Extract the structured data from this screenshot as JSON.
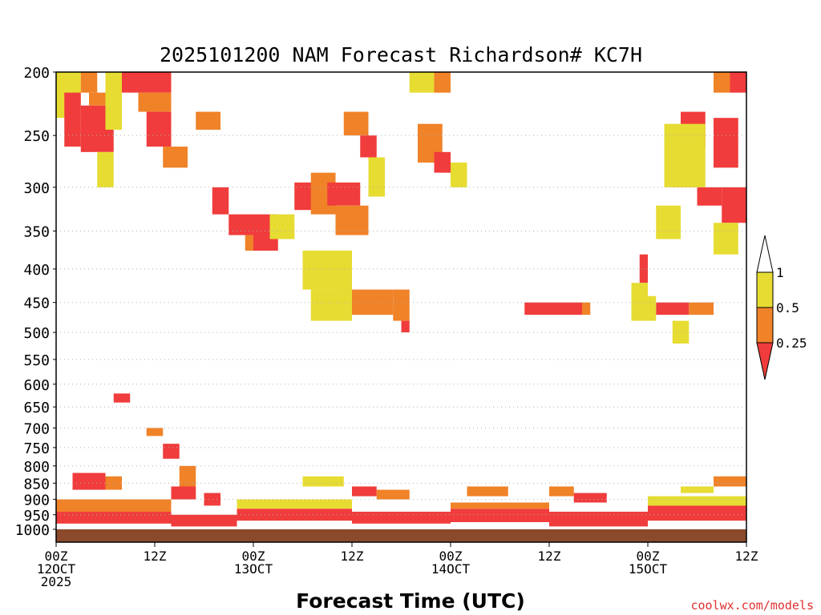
{
  "chart_data": {
    "type": "heatmap",
    "title": "2025101200 NAM Forecast Richardson# KC7H",
    "xlabel": "Forecast Time (UTC)",
    "ylabel": "",
    "credit": "coolwx.com/models",
    "x_range_hours": [
      0,
      84
    ],
    "y_range_hpa": [
      200,
      1000
    ],
    "y_ticks": [
      "200",
      "250",
      "300",
      "350",
      "400",
      "450",
      "500",
      "550",
      "600",
      "650",
      "700",
      "750",
      "800",
      "850",
      "900",
      "950",
      "1000"
    ],
    "x_ticks": [
      {
        "hour": 0,
        "line1": "00Z",
        "line2": "12OCT",
        "line3": "2025"
      },
      {
        "hour": 12,
        "line1": "12Z",
        "line2": "",
        "line3": ""
      },
      {
        "hour": 24,
        "line1": "00Z",
        "line2": "13OCT",
        "line3": ""
      },
      {
        "hour": 36,
        "line1": "12Z",
        "line2": "",
        "line3": ""
      },
      {
        "hour": 48,
        "line1": "00Z",
        "line2": "14OCT",
        "line3": ""
      },
      {
        "hour": 60,
        "line1": "12Z",
        "line2": "",
        "line3": ""
      },
      {
        "hour": 72,
        "line1": "00Z",
        "line2": "15OCT",
        "line3": ""
      },
      {
        "hour": 84,
        "line1": "12Z",
        "line2": "",
        "line3": ""
      }
    ],
    "legend": {
      "labels": [
        "1",
        "0.5",
        "0.25"
      ],
      "colors": {
        "above_1": "#ffffff",
        "0.5-1": "#e6dc32",
        "0.25-0.5": "#f08228",
        "below_0.25": "#f03c3c"
      }
    },
    "ground_color": "#8b4a2b",
    "cells": [
      {
        "h": [
          0,
          3
        ],
        "p": [
          200,
          235
        ],
        "c": "y"
      },
      {
        "h": [
          1,
          3
        ],
        "p": [
          215,
          260
        ],
        "c": "r"
      },
      {
        "h": [
          3,
          5
        ],
        "p": [
          200,
          215
        ],
        "c": "o"
      },
      {
        "h": [
          3,
          7
        ],
        "p": [
          225,
          265
        ],
        "c": "r"
      },
      {
        "h": [
          4,
          7
        ],
        "p": [
          215,
          225
        ],
        "c": "o"
      },
      {
        "h": [
          5,
          7
        ],
        "p": [
          265,
          300
        ],
        "c": "y"
      },
      {
        "h": [
          6,
          8
        ],
        "p": [
          200,
          245
        ],
        "c": "y"
      },
      {
        "h": [
          8,
          14
        ],
        "p": [
          200,
          215
        ],
        "c": "r"
      },
      {
        "h": [
          10,
          14
        ],
        "p": [
          215,
          230
        ],
        "c": "o"
      },
      {
        "h": [
          11,
          14
        ],
        "p": [
          230,
          260
        ],
        "c": "r"
      },
      {
        "h": [
          13,
          16
        ],
        "p": [
          260,
          280
        ],
        "c": "o"
      },
      {
        "h": [
          17,
          20
        ],
        "p": [
          230,
          245
        ],
        "c": "o"
      },
      {
        "h": [
          19,
          21
        ],
        "p": [
          300,
          330
        ],
        "c": "r"
      },
      {
        "h": [
          21,
          24
        ],
        "p": [
          330,
          355
        ],
        "c": "r"
      },
      {
        "h": [
          23,
          26
        ],
        "p": [
          355,
          375
        ],
        "c": "o"
      },
      {
        "h": [
          24,
          27
        ],
        "p": [
          330,
          375
        ],
        "c": "r"
      },
      {
        "h": [
          26,
          29
        ],
        "p": [
          330,
          360
        ],
        "c": "y"
      },
      {
        "h": [
          29,
          33
        ],
        "p": [
          295,
          325
        ],
        "c": "r"
      },
      {
        "h": [
          31,
          34
        ],
        "p": [
          285,
          330
        ],
        "c": "o"
      },
      {
        "h": [
          33,
          37
        ],
        "p": [
          295,
          320
        ],
        "c": "r"
      },
      {
        "h": [
          34,
          38
        ],
        "p": [
          320,
          355
        ],
        "c": "o"
      },
      {
        "h": [
          35,
          38
        ],
        "p": [
          230,
          250
        ],
        "c": "o"
      },
      {
        "h": [
          37,
          39
        ],
        "p": [
          250,
          270
        ],
        "c": "r"
      },
      {
        "h": [
          38,
          40
        ],
        "p": [
          270,
          310
        ],
        "c": "y"
      },
      {
        "h": [
          44,
          47
        ],
        "p": [
          240,
          275
        ],
        "c": "o"
      },
      {
        "h": [
          46,
          48
        ],
        "p": [
          265,
          285
        ],
        "c": "r"
      },
      {
        "h": [
          43,
          47
        ],
        "p": [
          200,
          215
        ],
        "c": "y"
      },
      {
        "h": [
          46,
          48
        ],
        "p": [
          200,
          215
        ],
        "c": "o"
      },
      {
        "h": [
          48,
          50
        ],
        "p": [
          275,
          300
        ],
        "c": "y"
      },
      {
        "h": [
          30,
          36
        ],
        "p": [
          375,
          430
        ],
        "c": "y"
      },
      {
        "h": [
          35,
          41
        ],
        "p": [
          430,
          470
        ],
        "c": "o"
      },
      {
        "h": [
          31,
          36
        ],
        "p": [
          430,
          480
        ],
        "c": "y"
      },
      {
        "h": [
          41,
          43
        ],
        "p": [
          430,
          480
        ],
        "c": "o"
      },
      {
        "h": [
          42,
          43
        ],
        "p": [
          480,
          500
        ],
        "c": "r"
      },
      {
        "h": [
          57,
          64
        ],
        "p": [
          450,
          470
        ],
        "c": "r"
      },
      {
        "h": [
          64,
          65
        ],
        "p": [
          450,
          470
        ],
        "c": "o"
      },
      {
        "h": [
          73,
          77
        ],
        "p": [
          450,
          470
        ],
        "c": "r"
      },
      {
        "h": [
          77,
          80
        ],
        "p": [
          450,
          470
        ],
        "c": "o"
      },
      {
        "h": [
          70,
          73
        ],
        "p": [
          440,
          480
        ],
        "c": "y"
      },
      {
        "h": [
          75,
          78
        ],
        "p": [
          270,
          300
        ],
        "c": "r"
      },
      {
        "h": [
          76,
          79
        ],
        "p": [
          230,
          260
        ],
        "c": "r"
      },
      {
        "h": [
          78,
          81
        ],
        "p": [
          300,
          320
        ],
        "c": "r"
      },
      {
        "h": [
          80,
          83
        ],
        "p": [
          235,
          280
        ],
        "c": "r"
      },
      {
        "h": [
          82,
          84
        ],
        "p": [
          200,
          215
        ],
        "c": "r"
      },
      {
        "h": [
          80,
          82
        ],
        "p": [
          200,
          215
        ],
        "c": "o"
      },
      {
        "h": [
          81,
          84
        ],
        "p": [
          300,
          340
        ],
        "c": "r"
      },
      {
        "h": [
          80,
          83
        ],
        "p": [
          340,
          380
        ],
        "c": "y"
      },
      {
        "h": [
          74,
          79
        ],
        "p": [
          240,
          300
        ],
        "c": "y"
      },
      {
        "h": [
          73,
          76
        ],
        "p": [
          320,
          360
        ],
        "c": "y"
      },
      {
        "h": [
          71,
          72
        ],
        "p": [
          380,
          420
        ],
        "c": "r"
      },
      {
        "h": [
          70,
          72
        ],
        "p": [
          420,
          450
        ],
        "c": "y"
      },
      {
        "h": [
          75,
          77
        ],
        "p": [
          480,
          520
        ],
        "c": "y"
      },
      {
        "h": [
          2,
          6
        ],
        "p": [
          820,
          870
        ],
        "c": "r"
      },
      {
        "h": [
          6,
          8
        ],
        "p": [
          830,
          870
        ],
        "c": "o"
      },
      {
        "h": [
          7,
          9
        ],
        "p": [
          620,
          640
        ],
        "c": "r"
      },
      {
        "h": [
          11,
          13
        ],
        "p": [
          700,
          720
        ],
        "c": "o"
      },
      {
        "h": [
          13,
          15
        ],
        "p": [
          740,
          780
        ],
        "c": "r"
      },
      {
        "h": [
          15,
          17
        ],
        "p": [
          800,
          860
        ],
        "c": "o"
      },
      {
        "h": [
          14,
          17
        ],
        "p": [
          860,
          900
        ],
        "c": "r"
      },
      {
        "h": [
          18,
          20
        ],
        "p": [
          880,
          920
        ],
        "c": "r"
      },
      {
        "h": [
          30,
          35
        ],
        "p": [
          830,
          860
        ],
        "c": "y"
      },
      {
        "h": [
          36,
          39
        ],
        "p": [
          860,
          890
        ],
        "c": "r"
      },
      {
        "h": [
          39,
          43
        ],
        "p": [
          870,
          900
        ],
        "c": "o"
      },
      {
        "h": [
          50,
          55
        ],
        "p": [
          860,
          890
        ],
        "c": "o"
      },
      {
        "h": [
          60,
          63
        ],
        "p": [
          860,
          890
        ],
        "c": "o"
      },
      {
        "h": [
          63,
          67
        ],
        "p": [
          880,
          910
        ],
        "c": "r"
      },
      {
        "h": [
          80,
          84
        ],
        "p": [
          830,
          860
        ],
        "c": "o"
      },
      {
        "h": [
          76,
          80
        ],
        "p": [
          860,
          880
        ],
        "c": "y"
      },
      {
        "h": [
          0,
          14
        ],
        "p": [
          940,
          980
        ],
        "c": "r"
      },
      {
        "h": [
          14,
          22
        ],
        "p": [
          950,
          990
        ],
        "c": "r"
      },
      {
        "h": [
          22,
          36
        ],
        "p": [
          930,
          970
        ],
        "c": "r"
      },
      {
        "h": [
          36,
          48
        ],
        "p": [
          940,
          980
        ],
        "c": "r"
      },
      {
        "h": [
          48,
          60
        ],
        "p": [
          930,
          975
        ],
        "c": "r"
      },
      {
        "h": [
          60,
          72
        ],
        "p": [
          940,
          990
        ],
        "c": "r"
      },
      {
        "h": [
          72,
          84
        ],
        "p": [
          920,
          970
        ],
        "c": "r"
      },
      {
        "h": [
          0,
          14
        ],
        "p": [
          900,
          940
        ],
        "c": "o"
      },
      {
        "h": [
          22,
          36
        ],
        "p": [
          900,
          930
        ],
        "c": "y"
      },
      {
        "h": [
          48,
          60
        ],
        "p": [
          910,
          930
        ],
        "c": "o"
      },
      {
        "h": [
          72,
          84
        ],
        "p": [
          890,
          920
        ],
        "c": "y"
      }
    ]
  },
  "palette": {
    "y": "#e6dc32",
    "o": "#f08228",
    "r": "#f03c3c"
  }
}
